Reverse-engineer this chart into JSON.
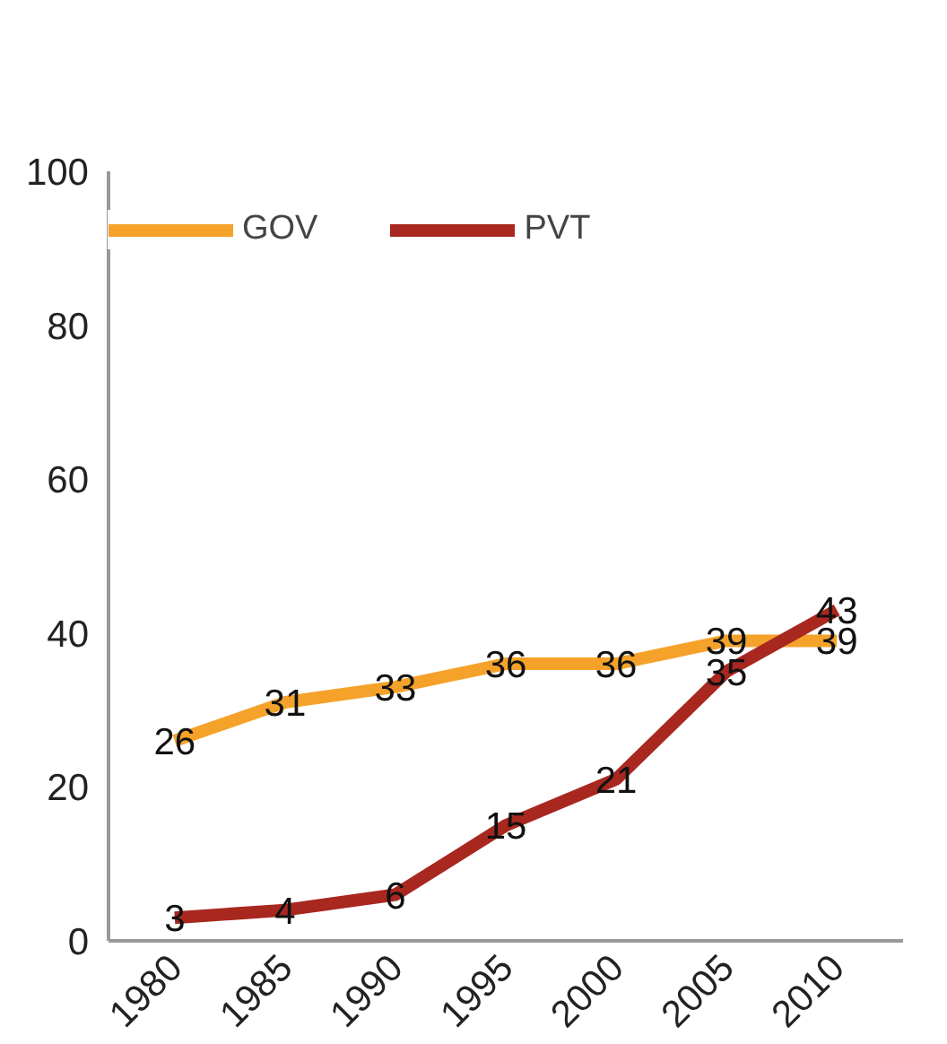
{
  "chart_data": {
    "type": "line",
    "categories": [
      "1980",
      "1985",
      "1990",
      "1995",
      "2000",
      "2005",
      "2010"
    ],
    "series": [
      {
        "name": "GOV",
        "color": "#f5a22a",
        "values": [
          26,
          31,
          33,
          36,
          36,
          39,
          39
        ]
      },
      {
        "name": "PVT",
        "color": "#a8271f",
        "values": [
          3,
          4,
          6,
          15,
          21,
          35,
          43
        ]
      }
    ],
    "ylim": [
      0,
      100
    ],
    "yticks": [
      0,
      20,
      40,
      60,
      80,
      100
    ],
    "grid": false,
    "legend": "top",
    "data_labels": true,
    "marker": "none",
    "line_style": "solid"
  }
}
